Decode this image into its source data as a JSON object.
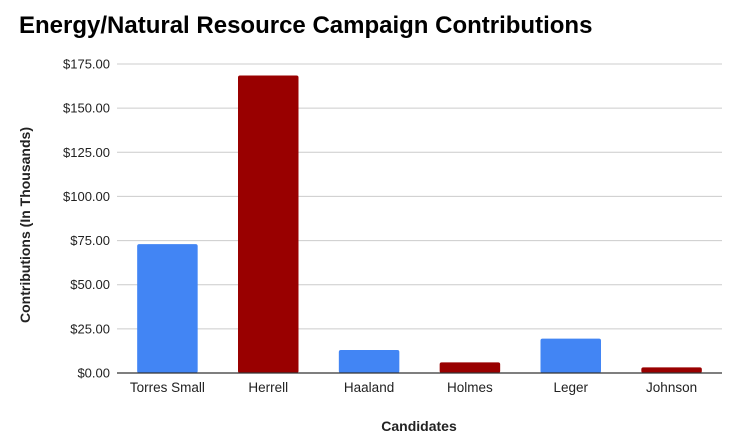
{
  "chart_data": {
    "type": "bar",
    "title": "Energy/Natural Resource Campaign Contributions",
    "xlabel": "Candidates",
    "ylabel": "Contributions (In Thousands)",
    "categories": [
      "Torres Small",
      "Herrell",
      "Haaland",
      "Holmes",
      "Leger",
      "Johnson"
    ],
    "values": [
      73,
      168.5,
      13,
      6,
      19.5,
      3.2
    ],
    "bar_colors": [
      "#4285f4",
      "#990000",
      "#4285f4",
      "#990000",
      "#4285f4",
      "#990000"
    ],
    "ylim": [
      0,
      175
    ],
    "yticks": [
      0,
      25,
      50,
      75,
      100,
      125,
      150,
      175
    ],
    "ytick_labels": [
      "$0.00",
      "$25.00",
      "$50.00",
      "$75.00",
      "$100.00",
      "$125.00",
      "$150.00",
      "$175.00"
    ],
    "grid": true,
    "legend": "none"
  },
  "colors": {
    "blue_series": "#4285f4",
    "red_series": "#990000",
    "gridline": "#cccccc",
    "axis": "#333333",
    "text": "#222222"
  }
}
